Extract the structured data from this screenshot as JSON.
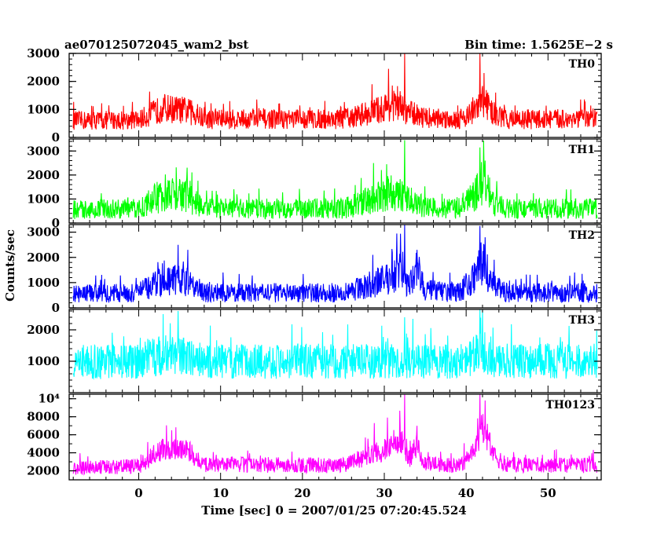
{
  "header": {
    "left_title": "ae070125072045_wam2_bst",
    "right_title": "Bin time: 1.5625E−2 s"
  },
  "chart_data": {
    "type": "line",
    "title": "ae070125072045_wam2_bst",
    "bin_time": "Bin time: 1.5625E−2 s",
    "xlabel": "Time [sec] 0 = 2007/01/25 07:20:45.524",
    "ylabel": "Counts/sec",
    "xlim": [
      -8.5,
      56.5
    ],
    "data_xrange": [
      -8,
      56
    ],
    "x_ticks": [
      0,
      10,
      20,
      30,
      40,
      50
    ],
    "grid": false,
    "panels": [
      {
        "name": "TH0",
        "color": "#ff0000",
        "ylim": [
          0,
          3000
        ],
        "y_ticks": [
          0,
          1000,
          2000,
          3000
        ],
        "y_tick_labels": [
          "0",
          "1000",
          "2000",
          "3000"
        ],
        "profile": [
          [
            -8,
            600
          ],
          [
            0,
            620
          ],
          [
            3,
            1050
          ],
          [
            6,
            950
          ],
          [
            8,
            650
          ],
          [
            25,
            650
          ],
          [
            29,
            950
          ],
          [
            31,
            1150
          ],
          [
            33,
            900
          ],
          [
            35,
            700
          ],
          [
            39,
            650
          ],
          [
            41,
            900
          ],
          [
            42,
            1350
          ],
          [
            43.5,
            800
          ],
          [
            45,
            650
          ],
          [
            56,
            650
          ]
        ],
        "noise": 280,
        "floor": 0,
        "spikes": [
          [
            32.5,
            3000
          ],
          [
            41.7,
            3000
          ],
          [
            30.5,
            2450
          ],
          [
            42.2,
            2300
          ],
          [
            28.5,
            1900
          ]
        ]
      },
      {
        "name": "TH1",
        "color": "#00ff00",
        "ylim": [
          0,
          3500
        ],
        "y_ticks": [
          0,
          1000,
          2000,
          3000
        ],
        "y_tick_labels": [
          "0",
          "1000",
          "2000",
          "3000"
        ],
        "profile": [
          [
            -8,
            550
          ],
          [
            0,
            600
          ],
          [
            3,
            1200
          ],
          [
            6,
            1100
          ],
          [
            8,
            600
          ],
          [
            25,
            600
          ],
          [
            29,
            1050
          ],
          [
            31,
            1300
          ],
          [
            33,
            950
          ],
          [
            35,
            650
          ],
          [
            39,
            600
          ],
          [
            41,
            1100
          ],
          [
            42,
            1700
          ],
          [
            43.5,
            800
          ],
          [
            45,
            600
          ],
          [
            56,
            600
          ]
        ],
        "noise": 330,
        "floor": 0,
        "spikes": [
          [
            32.5,
            3450
          ],
          [
            41.7,
            3150
          ],
          [
            28.7,
            2500
          ],
          [
            30.3,
            2450
          ],
          [
            42.3,
            2600
          ]
        ]
      },
      {
        "name": "TH2",
        "color": "#0000ff",
        "ylim": [
          0,
          3300
        ],
        "y_ticks": [
          0,
          1000,
          2000,
          3000
        ],
        "y_tick_labels": [
          "0",
          "1000",
          "2000",
          "3000"
        ],
        "profile": [
          [
            -8,
            550
          ],
          [
            0,
            600
          ],
          [
            3,
            1150
          ],
          [
            6,
            1000
          ],
          [
            8,
            600
          ],
          [
            25,
            600
          ],
          [
            29,
            1000
          ],
          [
            31,
            1200
          ],
          [
            32,
            1700
          ],
          [
            33,
            800
          ],
          [
            34,
            1600
          ],
          [
            35,
            700
          ],
          [
            39,
            600
          ],
          [
            41,
            1150
          ],
          [
            42,
            1800
          ],
          [
            43.5,
            800
          ],
          [
            45,
            600
          ],
          [
            56,
            600
          ]
        ],
        "noise": 300,
        "floor": 0,
        "spikes": [
          [
            32.5,
            3300
          ],
          [
            41.7,
            3250
          ],
          [
            42.3,
            2800
          ],
          [
            34,
            2300
          ],
          [
            4.8,
            2500
          ],
          [
            6,
            2300
          ]
        ]
      },
      {
        "name": "TH3",
        "color": "#00ffff",
        "ylim": [
          0,
          2650
        ],
        "y_ticks": [
          1000,
          2000
        ],
        "y_tick_labels": [
          "1000",
          "2000"
        ],
        "profile": [
          [
            -8,
            950
          ],
          [
            0,
            1000
          ],
          [
            3,
            1200
          ],
          [
            6,
            1150
          ],
          [
            8,
            1000
          ],
          [
            40,
            1000
          ],
          [
            42,
            1350
          ],
          [
            43.5,
            1000
          ],
          [
            56,
            1000
          ]
        ],
        "noise": 450,
        "floor": 50,
        "spikes": [
          [
            41.7,
            2650
          ],
          [
            4.8,
            2600
          ],
          [
            3,
            2500
          ],
          [
            32.5,
            2400
          ],
          [
            33.5,
            2350
          ]
        ]
      },
      {
        "name": "TH0123",
        "color": "#ff00ff",
        "ylim": [
          1000,
          10500
        ],
        "y_ticks": [
          2000,
          4000,
          6000,
          8000,
          10000
        ],
        "y_tick_labels": [
          "2000",
          "4000",
          "6000",
          "8000",
          "10⁴"
        ],
        "profile": [
          [
            -8,
            2300
          ],
          [
            0,
            2500
          ],
          [
            3,
            4500
          ],
          [
            6,
            4200
          ],
          [
            8,
            2700
          ],
          [
            25,
            2600
          ],
          [
            29,
            4000
          ],
          [
            31,
            4800
          ],
          [
            32,
            5500
          ],
          [
            33,
            3200
          ],
          [
            34,
            5000
          ],
          [
            35,
            2800
          ],
          [
            39,
            2500
          ],
          [
            41,
            4000
          ],
          [
            42,
            7000
          ],
          [
            43.5,
            3500
          ],
          [
            45,
            2700
          ],
          [
            56,
            2600
          ]
        ],
        "noise": 650,
        "floor": 1000,
        "spikes": [
          [
            32.5,
            10500
          ],
          [
            41.7,
            10500
          ],
          [
            42.3,
            9800
          ],
          [
            30.4,
            7900
          ],
          [
            28.8,
            7300
          ],
          [
            34,
            7000
          ]
        ]
      }
    ]
  }
}
